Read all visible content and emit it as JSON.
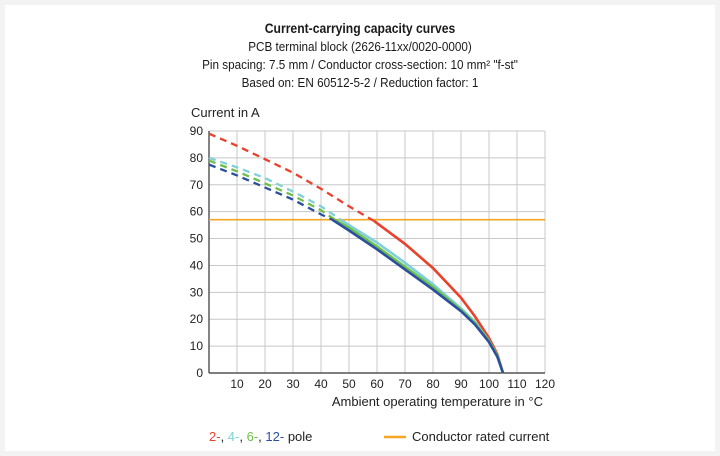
{
  "chart_data": {
    "type": "line",
    "title": "Current-carrying capacity curves",
    "subtitle_lines": [
      "PCB terminal block (2626-11xx/0020-0000)",
      "Pin spacing: 7.5 mm / Conductor cross-section: 10 mm² \"f-st\"",
      "Based on: EN 60512-5-2 / Reduction factor: 1"
    ],
    "ylabel": "Current in A",
    "xlabel": "Ambient operating temperature in °C",
    "xlim": [
      0,
      120
    ],
    "ylim": [
      0,
      90
    ],
    "x_ticks": [
      "10",
      "20",
      "30",
      "40",
      "50",
      "60",
      "70",
      "80",
      "90",
      "100",
      "110",
      "120"
    ],
    "y_ticks": [
      "0",
      "10",
      "20",
      "30",
      "40",
      "50",
      "60",
      "70",
      "80",
      "90"
    ],
    "grid": true,
    "legend_position": "bottom",
    "rated_current": {
      "name": "Conductor rated current",
      "value": 57,
      "color": "#f5a623"
    },
    "legend_pole": {
      "items": [
        "2-",
        "4-",
        "6-",
        "12-"
      ],
      "suffix": "pole"
    },
    "series": [
      {
        "label": "2-",
        "color": "#e8412c",
        "x": [
          0,
          10,
          20,
          30,
          40,
          50,
          59,
          70,
          80,
          90,
          95,
          100,
          103,
          105
        ],
        "y": [
          89,
          84.5,
          79.5,
          74.5,
          68.5,
          62,
          56.5,
          48,
          39,
          28,
          21,
          13,
          7,
          0
        ]
      },
      {
        "label": "4-",
        "color": "#7fd0d8",
        "x": [
          0,
          10,
          20,
          30,
          40,
          47,
          50,
          60,
          70,
          80,
          90,
          95,
          100,
          103,
          105
        ],
        "y": [
          80,
          76.5,
          72.5,
          67.5,
          62,
          57,
          55,
          48.5,
          41,
          33,
          24,
          19,
          12,
          6.5,
          0
        ]
      },
      {
        "label": "6-",
        "color": "#6dbf4b",
        "x": [
          0,
          10,
          20,
          30,
          40,
          45,
          50,
          60,
          70,
          80,
          90,
          95,
          100,
          103,
          105
        ],
        "y": [
          79,
          75,
          70.5,
          66,
          60.5,
          57,
          54,
          47,
          39.5,
          32,
          23.5,
          18.5,
          12,
          6.5,
          0
        ]
      },
      {
        "label": "12-",
        "color": "#2a4f9e",
        "x": [
          0,
          10,
          20,
          30,
          40,
          44,
          50,
          60,
          70,
          80,
          90,
          95,
          100,
          103,
          105
        ],
        "y": [
          77.5,
          73.5,
          69,
          64.5,
          59,
          57,
          53,
          46,
          38.5,
          31,
          23,
          18,
          11.5,
          6,
          0
        ]
      }
    ]
  }
}
